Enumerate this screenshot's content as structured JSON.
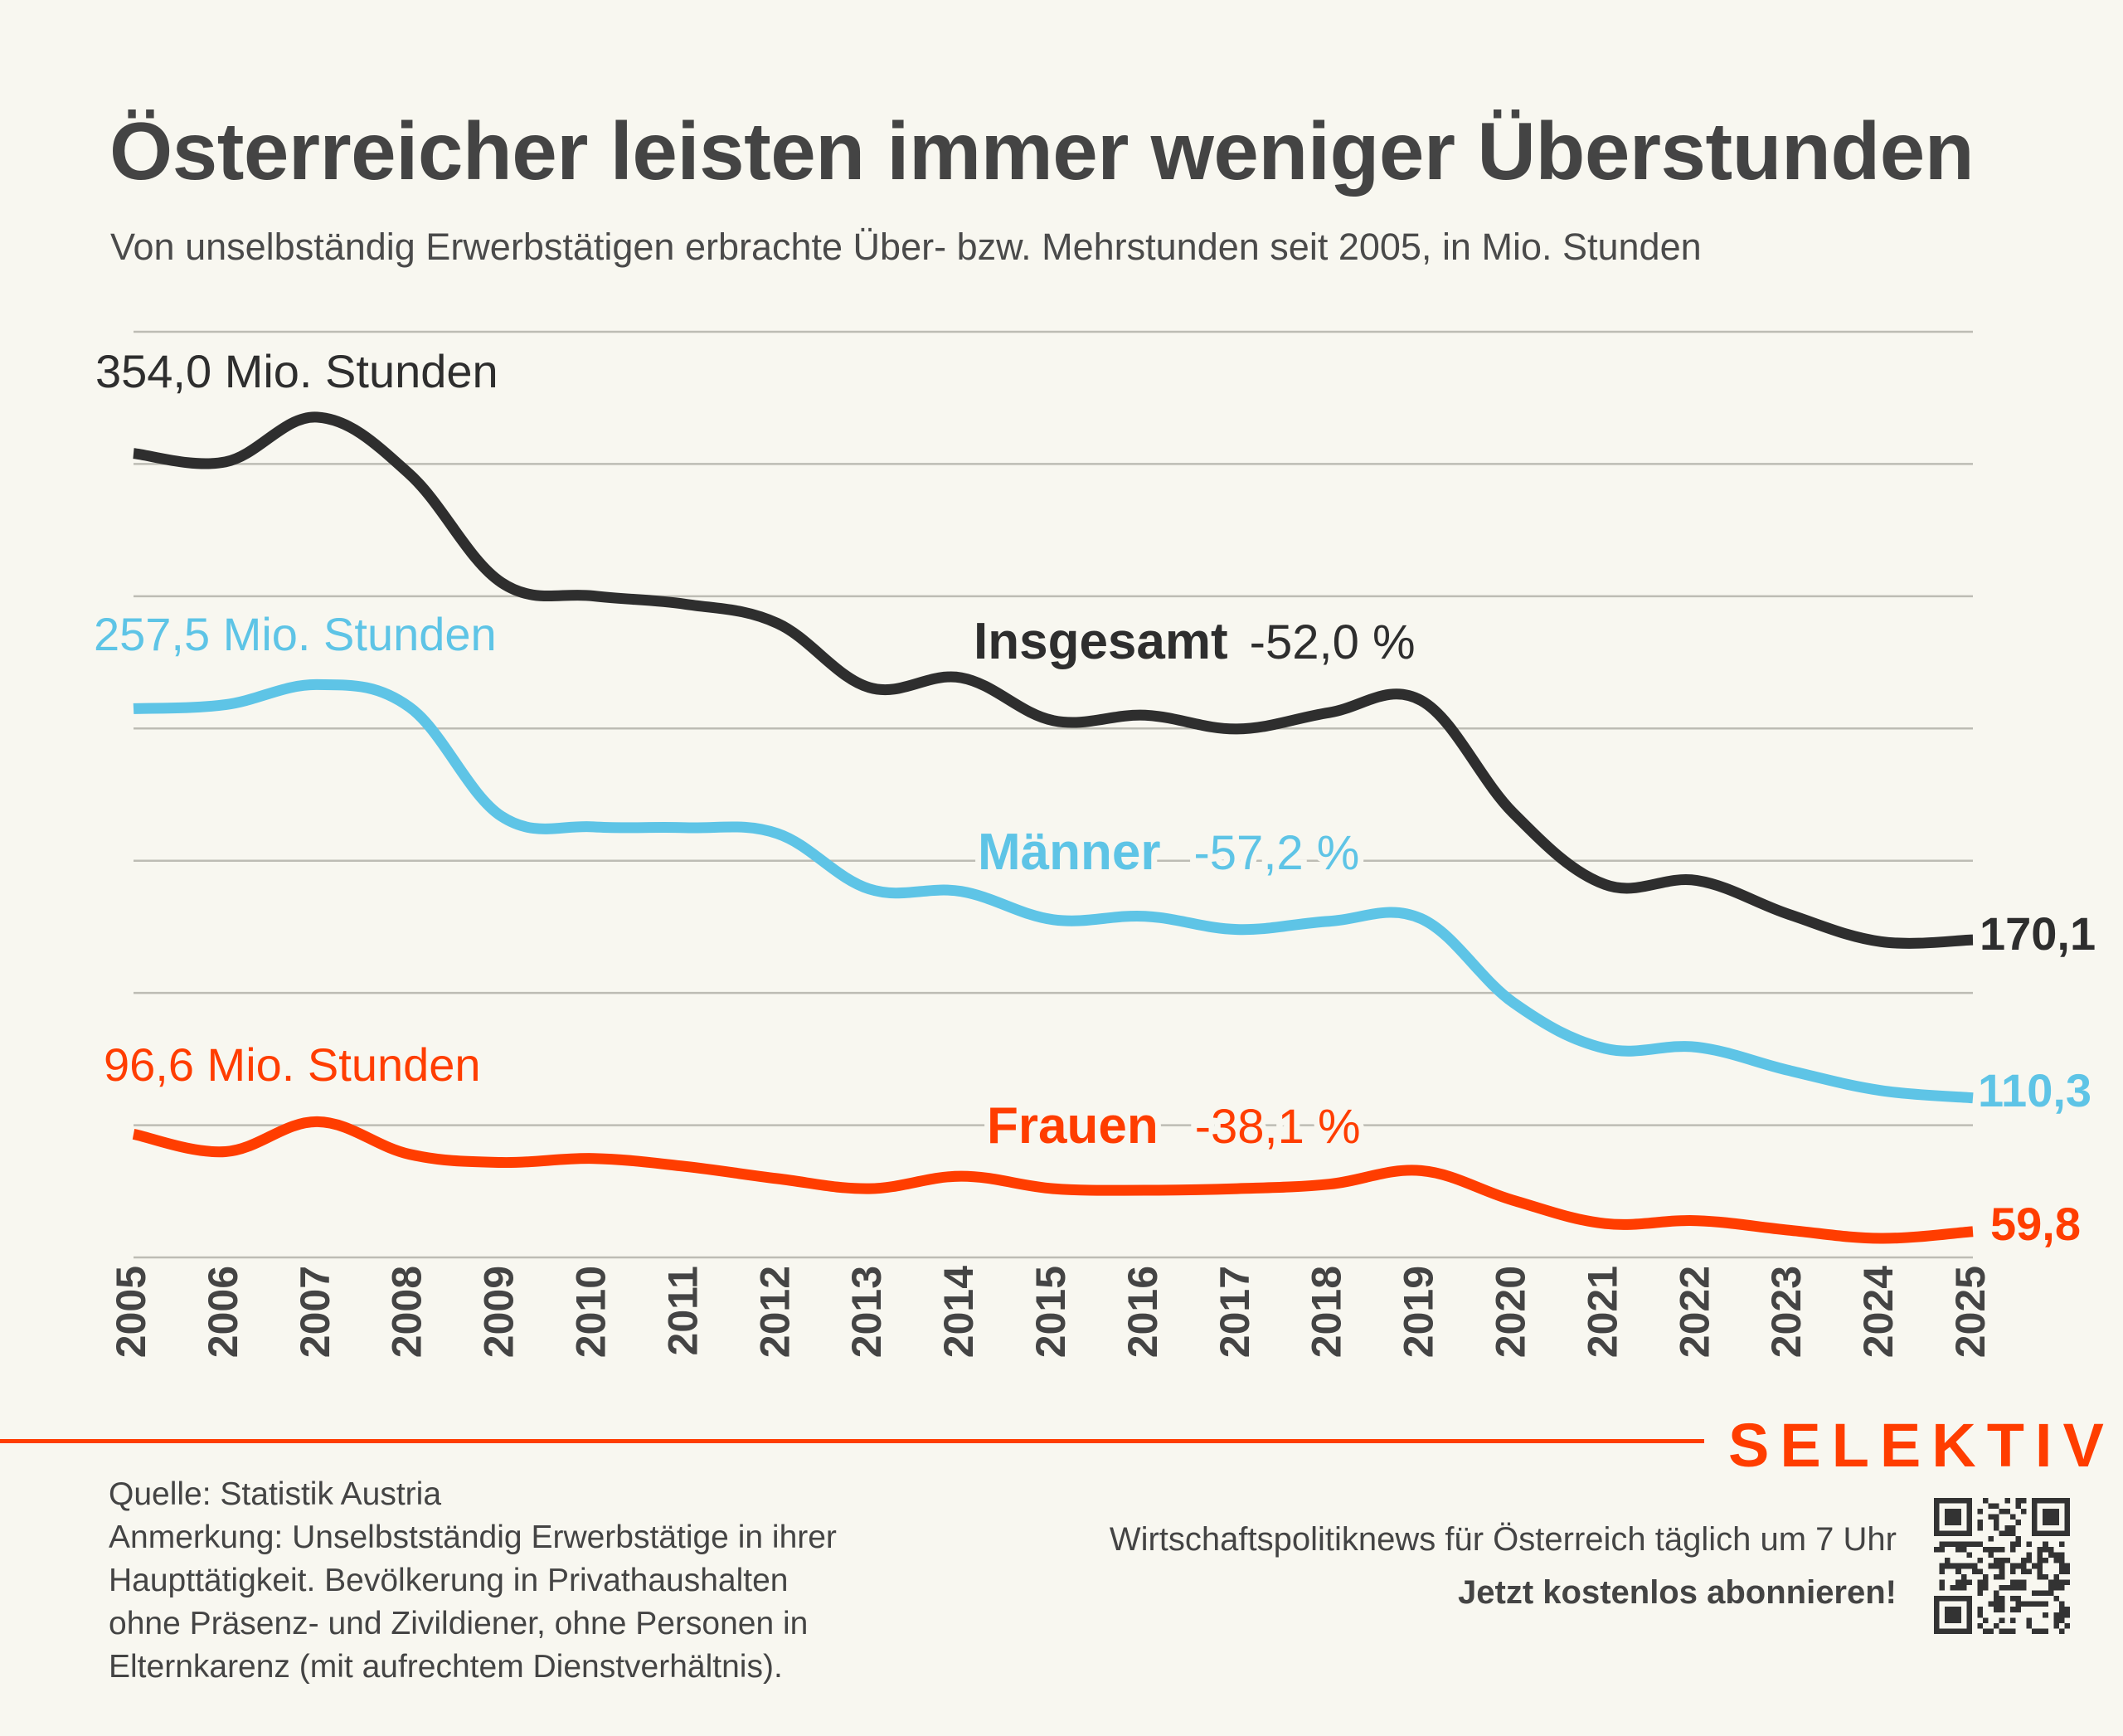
{
  "header": {
    "title": "Österreicher leisten immer weniger Überstunden",
    "subtitle": "Von unselbständig Erwerbstätigen erbrachte Über- bzw. Mehrstunden seit 2005, in Mio. Stunden"
  },
  "chart_data": {
    "type": "line",
    "title": "Österreicher leisten immer weniger Überstunden",
    "subtitle": "Von unselbständig Erwerbstätigen erbrachte Über- bzw. Mehrstunden seit 2005, in Mio. Stunden",
    "xlabel": "",
    "ylabel": "Mio. Stunden",
    "x": [
      "2005",
      "2006",
      "2007",
      "2008",
      "2009",
      "2010",
      "2011",
      "2012",
      "2013",
      "2014",
      "2015",
      "2016",
      "2017",
      "2018",
      "2019",
      "2020",
      "2021",
      "2022",
      "2023",
      "2024",
      "2025"
    ],
    "ylim": [
      50,
      400
    ],
    "yticks": [
      50,
      100,
      150,
      200,
      250,
      300,
      350,
      400
    ],
    "grid": true,
    "y_tick_labels_shown": false,
    "series": [
      {
        "name": "Insgesamt",
        "color": "#2E2E2E",
        "change_label": "-52,0 %",
        "start_label": "354,0 Mio. Stunden",
        "end_label": "170,1",
        "values": [
          354.0,
          350.8,
          367.7,
          346.2,
          305.2,
          300.1,
          297.0,
          289.8,
          265.5,
          269.2,
          253.0,
          255.0,
          249.8,
          256.0,
          260.6,
          218.1,
          191.0,
          192.5,
          179.7,
          169.4,
          170.1
        ]
      },
      {
        "name": "Männer",
        "color": "#5EC4E6",
        "change_label": "-57,2 %",
        "start_label": "257,5 Mio. Stunden",
        "end_label": "110,3",
        "values": [
          257.5,
          259.0,
          266.6,
          258.1,
          216.8,
          212.8,
          212.5,
          210.3,
          189.3,
          188.4,
          177.7,
          179.0,
          174.0,
          177.1,
          178.1,
          146.4,
          129.0,
          129.5,
          120.7,
          113.1,
          110.3
        ]
      },
      {
        "name": "Frauen",
        "color": "#FF3D00",
        "change_label": "-38,1 %",
        "start_label": "96,6 Mio. Stunden",
        "end_label": "59,8",
        "values": [
          96.6,
          90.0,
          101.3,
          89.0,
          85.9,
          87.4,
          84.4,
          79.8,
          76.0,
          80.7,
          76.0,
          75.4,
          76.0,
          77.7,
          82.8,
          71.6,
          62.8,
          63.9,
          60.3,
          57.2,
          59.8
        ]
      }
    ]
  },
  "footer": {
    "source": "Quelle: Statistik Austria",
    "note_lines": [
      "Anmerkung: Unselbstständig Erwerbstätige in ihrer",
      "Haupttätigkeit. Bevölkerung in Privathaushalten",
      "ohne Präsenz- und Zivildiener, ohne Personen in",
      "Elternkarenz (mit aufrechtem Dienstverhältnis)."
    ],
    "brand": "SELEKTIV",
    "tagline": "Wirtschaftspolitiknews für Österreich täglich um 7 Uhr",
    "cta": "Jetzt kostenlos abonnieren!",
    "qr_icon": "qr-code-icon"
  },
  "colors": {
    "background": "#F8F7F0",
    "text": "#444444",
    "grid": "#BDBCB4",
    "accent": "#FF3D00"
  }
}
